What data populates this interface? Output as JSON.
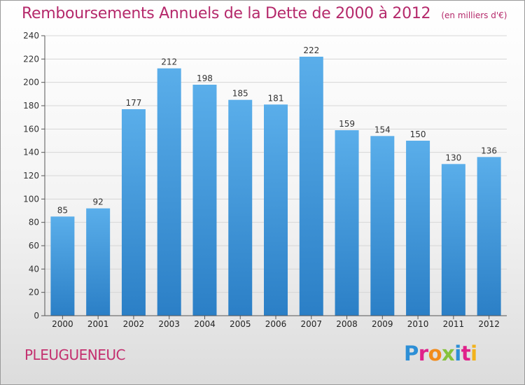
{
  "header": {
    "title": "Remboursements Annuels de la Dette de 2000 à 2012",
    "unit_note": "(en milliers d'€)"
  },
  "footer": {
    "commune": "PLEUGUENEUC",
    "logo_text": "Proxiti"
  },
  "colors": {
    "title": "#b5296b",
    "bar_top": "#5aaeea",
    "bar_bottom": "#2b7fc6"
  },
  "chart_data": {
    "type": "bar",
    "title": "Remboursements Annuels de la Dette de 2000 à 2012",
    "subtitle": "(en milliers d'€)",
    "xlabel": "",
    "ylabel": "",
    "categories": [
      "2000",
      "2001",
      "2002",
      "2003",
      "2004",
      "2005",
      "2006",
      "2007",
      "2008",
      "2009",
      "2010",
      "2011",
      "2012"
    ],
    "values": [
      85,
      92,
      177,
      212,
      198,
      185,
      181,
      222,
      159,
      154,
      150,
      130,
      136
    ],
    "ylim": [
      0,
      240
    ],
    "yticks": [
      0,
      20,
      40,
      60,
      80,
      100,
      120,
      140,
      160,
      180,
      200,
      220,
      240
    ],
    "grid": true,
    "data_labels": true
  }
}
